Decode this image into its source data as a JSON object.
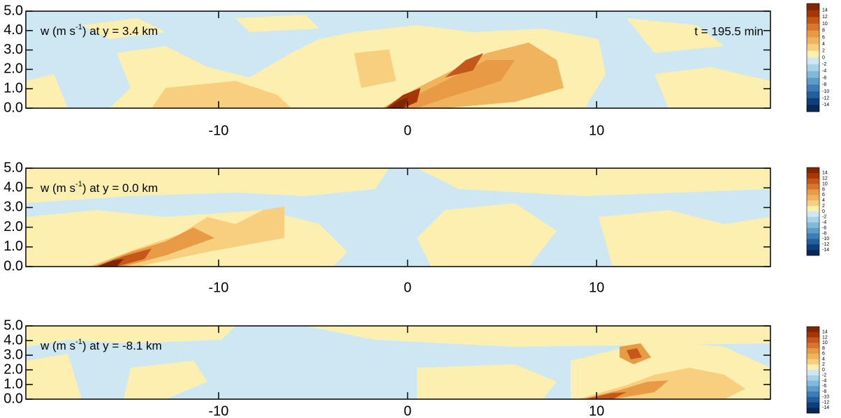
{
  "chart_data": [
    {
      "type": "contour",
      "title": {
        "prefix": "w (m s",
        "superscript": "-1",
        "suffix": ") at y = 3.4 km"
      },
      "annotation": "t = 195.5 min",
      "xlim": [
        -20.2,
        19.2
      ],
      "ylim": [
        0,
        5
      ],
      "xticks": [
        -10,
        0,
        10
      ],
      "yticks": [
        {
          "value": 0,
          "label": "0.0"
        },
        {
          "value": 1,
          "label": "1.0"
        },
        {
          "value": 2,
          "label": "2.0"
        },
        {
          "value": 3,
          "label": "3.0"
        },
        {
          "value": 4,
          "label": "4.0"
        },
        {
          "value": 5,
          "label": "5.0"
        }
      ],
      "colorbar": {
        "levels": [
          14,
          12,
          10,
          8,
          6,
          4,
          2,
          0,
          -2,
          -4,
          -6,
          -8,
          -10,
          -12,
          -14
        ],
        "colors": [
          "#7f2704",
          "#a63603",
          "#c4581b",
          "#d8762f",
          "#e89a45",
          "#f0b45f",
          "#f7cf7e",
          "#fcefb0",
          "#cde8f2",
          "#a7d2e8",
          "#82b8d8",
          "#5e9bc6",
          "#3e7db3",
          "#245f9c",
          "#0e3f7c",
          "#08285a"
        ]
      }
    },
    {
      "type": "contour",
      "title": {
        "prefix": "w (m s",
        "superscript": "-1",
        "suffix": ") at y = 0.0 km"
      },
      "xlim": [
        -20.2,
        19.2
      ],
      "ylim": [
        0,
        5
      ],
      "xticks": [
        -10,
        0,
        10
      ],
      "yticks": [
        {
          "value": 0,
          "label": "0.0"
        },
        {
          "value": 1,
          "label": "1.0"
        },
        {
          "value": 2,
          "label": "2.0"
        },
        {
          "value": 3,
          "label": "3.0"
        },
        {
          "value": 4,
          "label": "4.0"
        },
        {
          "value": 5,
          "label": "5.0"
        }
      ],
      "colorbar": {
        "levels": [
          14,
          12,
          10,
          8,
          6,
          4,
          2,
          0,
          -2,
          -4,
          -6,
          -8,
          -10,
          -12,
          -14
        ],
        "colors": [
          "#7f2704",
          "#a63603",
          "#c4581b",
          "#d8762f",
          "#e89a45",
          "#f0b45f",
          "#f7cf7e",
          "#fcefb0",
          "#cde8f2",
          "#a7d2e8",
          "#82b8d8",
          "#5e9bc6",
          "#3e7db3",
          "#245f9c",
          "#0e3f7c",
          "#08285a"
        ]
      }
    },
    {
      "type": "contour",
      "title": {
        "prefix": "w (m s",
        "superscript": "-1",
        "suffix": ") at y = -8.1 km"
      },
      "xlim": [
        -20.2,
        19.2
      ],
      "ylim": [
        0,
        5
      ],
      "xticks": [
        -10,
        0,
        10
      ],
      "yticks": [
        {
          "value": 0,
          "label": "0.0"
        },
        {
          "value": 1,
          "label": "1.0"
        },
        {
          "value": 2,
          "label": "2.0"
        },
        {
          "value": 3,
          "label": "3.0"
        },
        {
          "value": 4,
          "label": "4.0"
        },
        {
          "value": 5,
          "label": "5.0"
        }
      ],
      "colorbar": {
        "levels": [
          14,
          12,
          10,
          8,
          6,
          4,
          2,
          0,
          -2,
          -4,
          -6,
          -8,
          -10,
          -12,
          -14
        ],
        "colors": [
          "#7f2704",
          "#a63603",
          "#c4581b",
          "#d8762f",
          "#e89a45",
          "#f0b45f",
          "#f7cf7e",
          "#fcefb0",
          "#cde8f2",
          "#a7d2e8",
          "#82b8d8",
          "#5e9bc6",
          "#3e7db3",
          "#245f9c",
          "#0e3f7c",
          "#08285a"
        ]
      }
    }
  ]
}
